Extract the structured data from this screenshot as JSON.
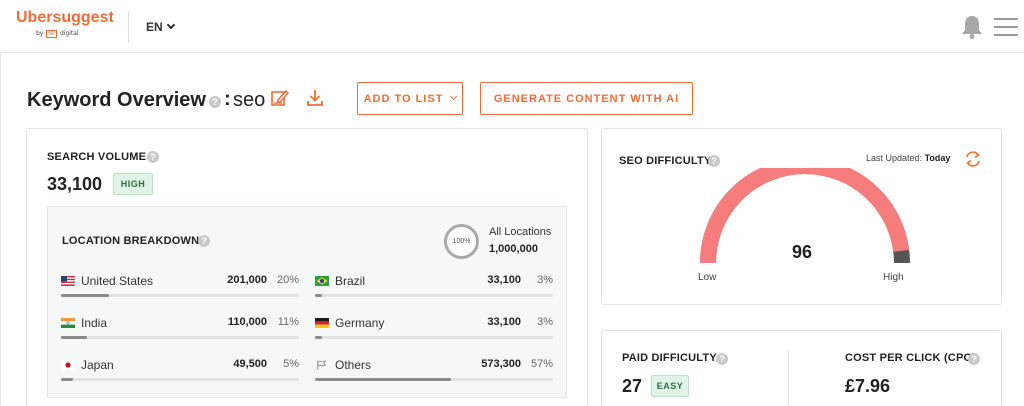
{
  "header": {
    "logo_text": "Ubersuggest",
    "logo_sub_by": "by",
    "logo_sub_np": "NP",
    "logo_sub_digital": "digital",
    "language": "EN",
    "icons": {
      "notifications": "bell-icon",
      "menu": "hamburger-menu-icon"
    }
  },
  "overview": {
    "title": "Keyword Overview",
    "help": "?",
    "colon": ":",
    "keyword": "seo",
    "add_to_list_label": "ADD TO LIST",
    "generate_label": "GENERATE CONTENT WITH AI",
    "accent_color": "#ee6e3a"
  },
  "search_volume": {
    "label": "SEARCH VOLUME",
    "help": "?",
    "value": "33,100",
    "badge": "HIGH",
    "location_breakdown": {
      "label": "LOCATION BREAKDOWN",
      "help": "?",
      "ring_label": "100%",
      "all_locations_label": "All Locations",
      "all_locations_value": "1,000,000",
      "rows": [
        {
          "flag": "us-flag-icon",
          "country": "United States",
          "value": "201,000",
          "percent": "20%",
          "share": 0.2
        },
        {
          "flag": "brazil-flag-icon",
          "country": "Brazil",
          "value": "33,100",
          "percent": "3%",
          "share": 0.03
        },
        {
          "flag": "india-flag-icon",
          "country": "India",
          "value": "110,000",
          "percent": "11%",
          "share": 0.11
        },
        {
          "flag": "germany-flag-icon",
          "country": "Germany",
          "value": "33,100",
          "percent": "3%",
          "share": 0.03
        },
        {
          "flag": "japan-flag-icon",
          "country": "Japan",
          "value": "49,500",
          "percent": "5%",
          "share": 0.05
        },
        {
          "flag": "others-flag-icon",
          "country": "Others",
          "value": "573,300",
          "percent": "57%",
          "share": 0.57
        }
      ]
    }
  },
  "seo_difficulty": {
    "label": "SEO DIFFICULTY",
    "help": "?",
    "last_updated_label": "Last Updated:",
    "last_updated_value": "Today",
    "value": "96",
    "level": 96,
    "low_label": "Low",
    "high_label": "High",
    "gauge_color": "#f77d7d"
  },
  "paid_difficulty": {
    "label": "PAID DIFFICULTY",
    "help": "?",
    "value": "27",
    "badge": "EASY"
  },
  "cpc": {
    "label": "COST PER CLICK (CPC)",
    "help": "?",
    "value": "£7.96"
  }
}
